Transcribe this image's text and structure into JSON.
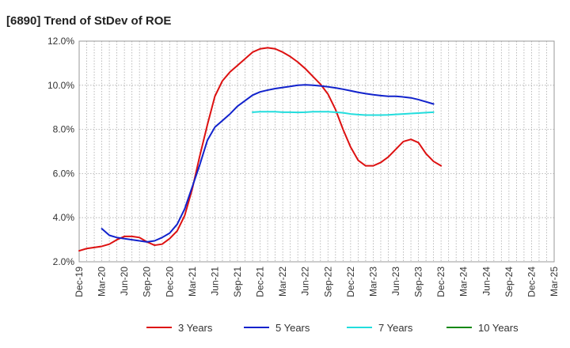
{
  "chart_data": {
    "type": "line",
    "title": "[6890]  Trend of StDev of ROE",
    "xlabel": "",
    "ylabel": "",
    "ylim": [
      2.0,
      12.0
    ],
    "yticks": [
      "2.0%",
      "4.0%",
      "6.0%",
      "8.0%",
      "10.0%",
      "12.0%"
    ],
    "ytick_values": [
      2,
      4,
      6,
      8,
      10,
      12
    ],
    "xticks": [
      "Dec-19",
      "Mar-20",
      "Jun-20",
      "Sep-20",
      "Dec-20",
      "Mar-21",
      "Jun-21",
      "Sep-21",
      "Dec-21",
      "Mar-22",
      "Jun-22",
      "Sep-22",
      "Dec-22",
      "Mar-23",
      "Jun-23",
      "Sep-23",
      "Dec-23",
      "Mar-24",
      "Jun-24",
      "Sep-24",
      "Dec-24",
      "Mar-25"
    ],
    "grid": true,
    "legend_position": "bottom",
    "series": [
      {
        "name": "3 Years",
        "color": "#dd1111",
        "values": [
          2.5,
          2.6,
          2.65,
          2.7,
          2.8,
          3.0,
          3.15,
          3.15,
          3.1,
          2.9,
          2.75,
          2.8,
          3.05,
          3.4,
          4.1,
          5.3,
          6.8,
          8.2,
          9.5,
          10.2,
          10.6,
          10.9,
          11.2,
          11.5,
          11.65,
          11.7,
          11.65,
          11.5,
          11.3,
          11.05,
          10.75,
          10.4,
          10.05,
          9.6,
          8.9,
          8.0,
          7.2,
          6.6,
          6.35,
          6.35,
          6.5,
          6.75,
          7.1,
          7.45,
          7.55,
          7.4,
          6.9,
          6.55,
          6.35
        ]
      },
      {
        "name": "5 Years",
        "color": "#1122cc",
        "values": [
          null,
          null,
          null,
          3.5,
          3.2,
          3.1,
          3.05,
          3.0,
          2.95,
          2.9,
          2.95,
          3.1,
          3.3,
          3.7,
          4.4,
          5.4,
          6.4,
          7.5,
          8.1,
          8.4,
          8.7,
          9.05,
          9.3,
          9.55,
          9.7,
          9.78,
          9.85,
          9.9,
          9.95,
          10.0,
          10.02,
          10.0,
          9.97,
          9.93,
          9.88,
          9.82,
          9.75,
          9.68,
          9.62,
          9.57,
          9.53,
          9.5,
          9.5,
          9.47,
          9.43,
          9.35,
          9.25,
          9.15
        ]
      },
      {
        "name": "7 Years",
        "color": "#22dddd",
        "values": [
          null,
          null,
          null,
          null,
          null,
          null,
          null,
          null,
          null,
          null,
          null,
          null,
          null,
          null,
          null,
          null,
          null,
          null,
          null,
          null,
          null,
          null,
          null,
          8.78,
          8.8,
          8.8,
          8.8,
          8.78,
          8.78,
          8.77,
          8.78,
          8.8,
          8.8,
          8.8,
          8.78,
          8.75,
          8.7,
          8.67,
          8.65,
          8.65,
          8.65,
          8.66,
          8.68,
          8.7,
          8.72,
          8.74,
          8.76,
          8.78
        ]
      },
      {
        "name": "10 Years",
        "color": "#118811",
        "values": []
      }
    ]
  }
}
